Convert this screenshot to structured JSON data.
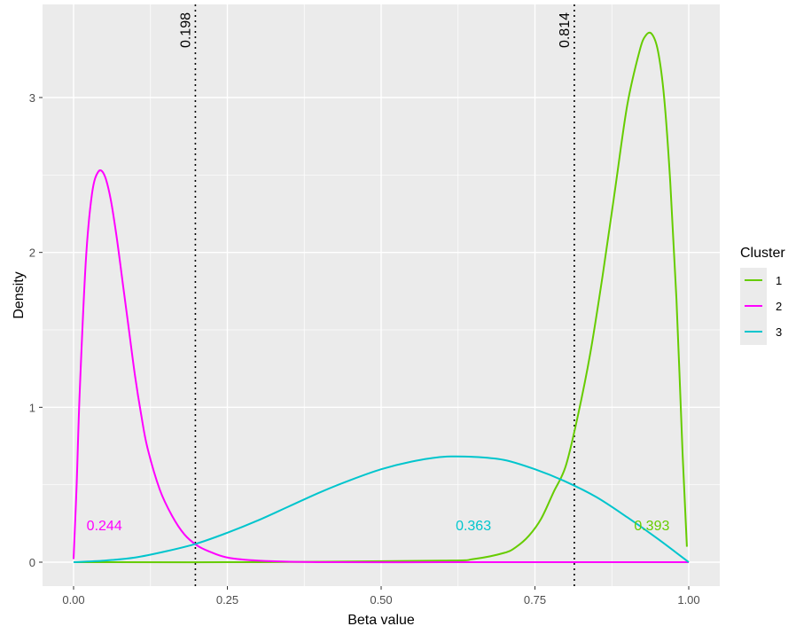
{
  "chart_data": {
    "type": "line",
    "xlabel": "Beta value",
    "ylabel": "Density",
    "xlim": [
      0,
      1
    ],
    "ylim": [
      0,
      3.45
    ],
    "x_ticks": [
      "0.00",
      "0.25",
      "0.50",
      "0.75",
      "1.00"
    ],
    "y_ticks": [
      "0",
      "1",
      "2",
      "3"
    ],
    "grid": true,
    "background": "#ebebeb",
    "legend": {
      "title": "Cluster",
      "placement": "right"
    },
    "series": [
      {
        "name": "1",
        "color": "#66cc00",
        "x": [
          0.0,
          0.3,
          0.6,
          0.65,
          0.7,
          0.72,
          0.74,
          0.76,
          0.78,
          0.8,
          0.82,
          0.84,
          0.86,
          0.88,
          0.9,
          0.92,
          0.93,
          0.94,
          0.95,
          0.96,
          0.97,
          0.98,
          0.99,
          0.997
        ],
        "values": [
          0.0,
          0.0,
          0.01,
          0.02,
          0.06,
          0.1,
          0.17,
          0.28,
          0.45,
          0.62,
          0.95,
          1.35,
          1.85,
          2.4,
          2.95,
          3.3,
          3.4,
          3.41,
          3.3,
          3.0,
          2.45,
          1.7,
          0.7,
          0.1
        ]
      },
      {
        "name": "2",
        "color": "#ff00ff",
        "x": [
          0.0,
          0.005,
          0.01,
          0.02,
          0.03,
          0.04,
          0.05,
          0.06,
          0.07,
          0.08,
          0.09,
          0.1,
          0.11,
          0.12,
          0.14,
          0.16,
          0.18,
          0.2,
          0.22,
          0.25,
          0.3,
          0.4,
          0.6,
          0.8,
          1.0
        ],
        "values": [
          0.02,
          0.5,
          1.1,
          1.95,
          2.38,
          2.52,
          2.5,
          2.35,
          2.1,
          1.8,
          1.5,
          1.2,
          0.95,
          0.74,
          0.47,
          0.3,
          0.18,
          0.11,
          0.07,
          0.03,
          0.01,
          0.0,
          0.0,
          0.0,
          0.0
        ]
      },
      {
        "name": "3",
        "color": "#00c5cd",
        "x": [
          0.0,
          0.05,
          0.1,
          0.15,
          0.2,
          0.25,
          0.3,
          0.35,
          0.4,
          0.45,
          0.5,
          0.55,
          0.6,
          0.65,
          0.7,
          0.75,
          0.8,
          0.85,
          0.9,
          0.95,
          1.0
        ],
        "values": [
          0.0,
          0.01,
          0.03,
          0.07,
          0.12,
          0.19,
          0.27,
          0.36,
          0.45,
          0.53,
          0.6,
          0.65,
          0.68,
          0.68,
          0.66,
          0.6,
          0.52,
          0.42,
          0.29,
          0.15,
          0.0
        ]
      }
    ],
    "vlines": [
      {
        "x": 0.198,
        "label": "0.198"
      },
      {
        "x": 0.814,
        "label": "0.814"
      }
    ],
    "annotations": [
      {
        "text": "0.244",
        "x": 0.05,
        "y": 0.24,
        "color": "#ff00ff"
      },
      {
        "text": "0.363",
        "x": 0.65,
        "y": 0.24,
        "color": "#00c5cd"
      },
      {
        "text": "0.393",
        "x": 0.94,
        "y": 0.24,
        "color": "#66cc00"
      }
    ]
  }
}
